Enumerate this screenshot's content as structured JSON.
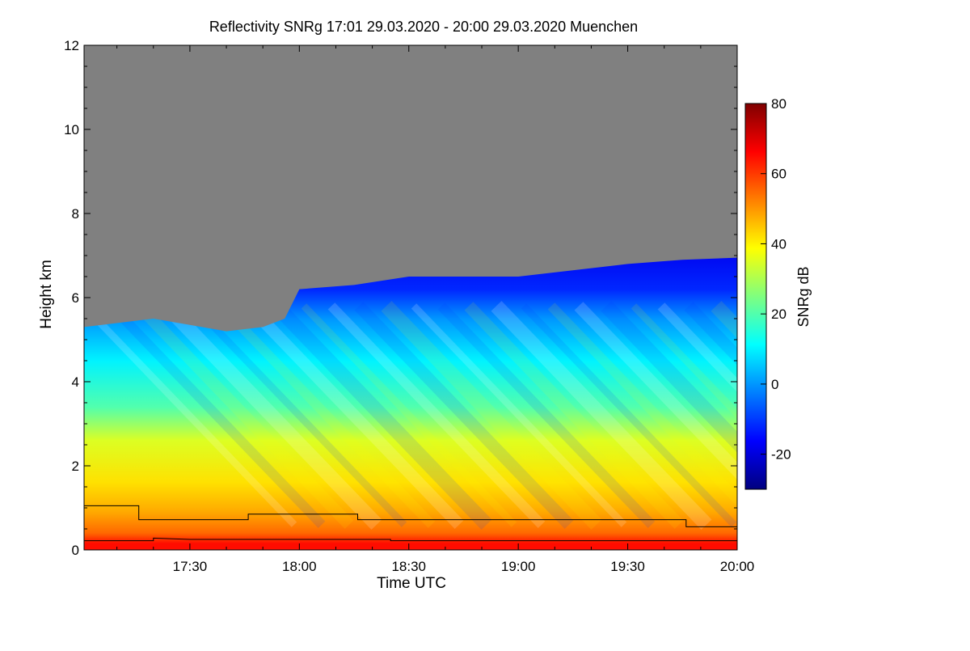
{
  "chart_data": {
    "type": "heatmap",
    "title": "Reflectivity SNRg   17:01 29.03.2020 - 20:00 29.03.2020 Muenchen",
    "xlabel": "Time UTC",
    "ylabel": "Height km",
    "xlim": [
      "17:01",
      "20:00"
    ],
    "ylim": [
      0,
      12
    ],
    "x_ticks": [
      "17:30",
      "18:00",
      "18:30",
      "19:00",
      "19:30",
      "20:00"
    ],
    "y_ticks": [
      0,
      2,
      4,
      6,
      8,
      10,
      12
    ],
    "colorbar": {
      "label": "SNRg dB",
      "range": [
        -30,
        80
      ],
      "ticks": [
        -20,
        0,
        20,
        40,
        60,
        80
      ],
      "colormap": [
        "#00007f",
        "#0000ff",
        "#007fff",
        "#00ffff",
        "#7fff7f",
        "#ffff00",
        "#ff7f00",
        "#ff0000",
        "#7f0000"
      ]
    },
    "no_signal_color": "#808080",
    "echo_top_km": [
      {
        "time": "17:01",
        "height": 5.3
      },
      {
        "time": "17:20",
        "height": 5.5
      },
      {
        "time": "17:40",
        "height": 5.2
      },
      {
        "time": "17:50",
        "height": 5.3
      },
      {
        "time": "17:56",
        "height": 5.5
      },
      {
        "time": "18:00",
        "height": 6.2
      },
      {
        "time": "18:15",
        "height": 6.3
      },
      {
        "time": "18:30",
        "height": 6.5
      },
      {
        "time": "19:00",
        "height": 6.5
      },
      {
        "time": "19:30",
        "height": 6.8
      },
      {
        "time": "19:45",
        "height": 6.9
      },
      {
        "time": "20:00",
        "height": 6.95
      }
    ],
    "snr_layers": [
      {
        "top_km": 5.5,
        "snr_db": 0
      },
      {
        "top_km": 4.5,
        "snr_db": 10
      },
      {
        "top_km": 3.4,
        "snr_db": 20
      },
      {
        "top_km": 2.6,
        "snr_db": 35
      },
      {
        "top_km": 1.6,
        "snr_db": 42
      },
      {
        "top_km": 0.9,
        "snr_db": 48
      },
      {
        "top_km": 0.4,
        "snr_db": 55
      },
      {
        "top_km": 0.15,
        "snr_db": 65
      }
    ],
    "series": [
      {
        "points": [
          {
            "time": "17:01",
            "height": 1.05
          },
          {
            "time": "17:16",
            "height": 1.05
          },
          {
            "time": "17:16",
            "height": 0.72
          },
          {
            "time": "17:46",
            "height": 0.72
          },
          {
            "time": "17:46",
            "height": 0.85
          },
          {
            "time": "18:16",
            "height": 0.85
          },
          {
            "time": "18:16",
            "height": 0.72
          },
          {
            "time": "19:46",
            "height": 0.72
          },
          {
            "time": "19:46",
            "height": 0.55
          },
          {
            "time": "20:00",
            "height": 0.55
          }
        ]
      },
      {
        "points": [
          {
            "time": "17:01",
            "height": 0.22
          },
          {
            "time": "17:20",
            "height": 0.22
          },
          {
            "time": "17:20",
            "height": 0.28
          },
          {
            "time": "17:30",
            "height": 0.25
          },
          {
            "time": "18:25",
            "height": 0.25
          },
          {
            "time": "18:25",
            "height": 0.22
          },
          {
            "time": "20:00",
            "height": 0.22
          }
        ]
      }
    ]
  }
}
